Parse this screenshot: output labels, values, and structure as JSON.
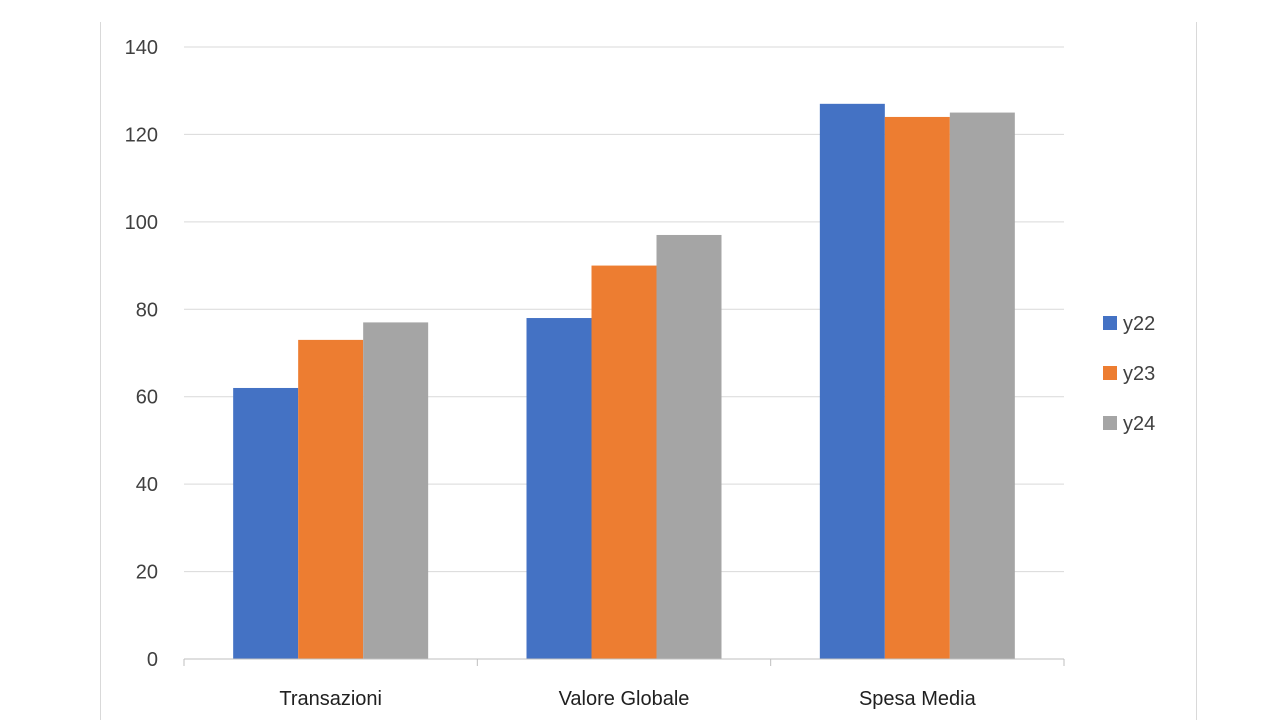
{
  "chart_data": {
    "type": "bar",
    "title": "",
    "xlabel": "",
    "ylabel": "",
    "categories": [
      "Transazioni",
      "Valore Globale",
      "Spesa Media"
    ],
    "series": [
      {
        "name": "y22",
        "values": [
          62,
          78,
          127
        ],
        "color": "#4472C4"
      },
      {
        "name": "y23",
        "values": [
          73,
          90,
          124
        ],
        "color": "#ED7D31"
      },
      {
        "name": "y24",
        "values": [
          77,
          97,
          125
        ],
        "color": "#A5A5A5"
      }
    ],
    "ylim": [
      0,
      140
    ],
    "yticks": [
      0,
      20,
      40,
      60,
      80,
      100,
      120,
      140
    ],
    "grid": true,
    "legend": "right"
  }
}
